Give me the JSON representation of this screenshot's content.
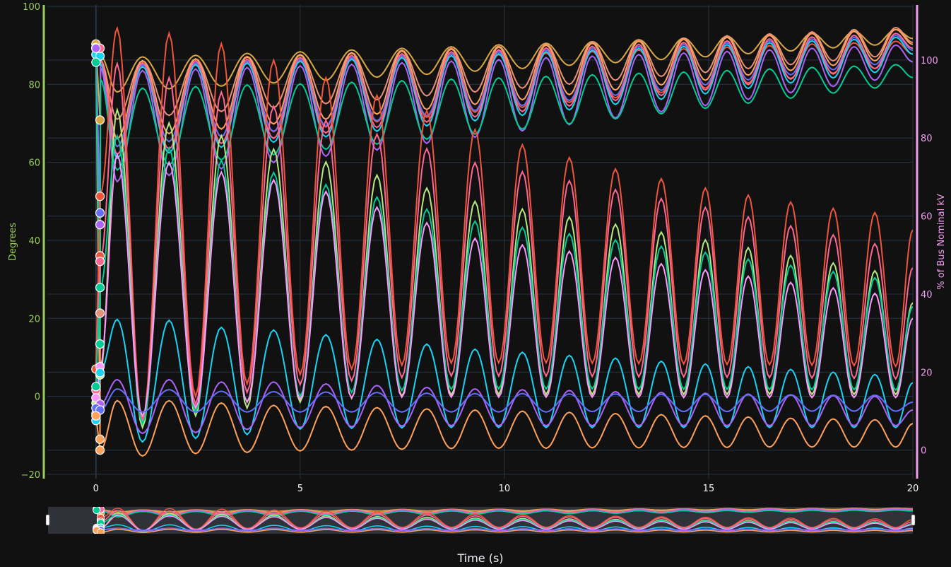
{
  "theme": {
    "background": "#111111",
    "grid": "#283442",
    "slider_bg": "#2f3238",
    "left_axis_color": "#9acd5f",
    "right_axis_color": "#f09ef0",
    "tick_text": "#f2f5fa"
  },
  "chart_data": {
    "type": "line",
    "xlabel": "Time (s)",
    "ylabel": "Degrees",
    "y2label": "% of Bus Nominal kV",
    "xlim": [
      -1.19,
      20
    ],
    "ylim": [
      -21.1,
      100.36
    ],
    "y2lim": [
      -7.3,
      114.1
    ],
    "xticks": [
      "0",
      "5",
      "10",
      "15",
      "20"
    ],
    "xtick_values": [
      0,
      5,
      10,
      15,
      20
    ],
    "yticks": [
      "100",
      "80",
      "60",
      "40",
      "20",
      "0",
      "−20"
    ],
    "ytick_values": [
      100,
      80,
      60,
      40,
      20,
      0,
      -20
    ],
    "y2ticks": [
      "100",
      "80",
      "60",
      "40",
      "20",
      "0"
    ],
    "y2tick_values": [
      100,
      80,
      60,
      40,
      20,
      0
    ],
    "grid": true,
    "rangeslider": true,
    "markers_on_first_points": 2,
    "x": [
      0,
      0.1,
      0.11,
      0.52,
      1.14,
      1.79,
      2.44,
      3.07,
      3.7,
      4.35,
      5.0,
      5.63,
      6.26,
      6.88,
      7.49,
      8.1,
      8.7,
      9.28,
      9.86,
      10.44,
      11.02,
      11.59,
      12.15,
      12.72,
      13.29,
      13.84,
      14.39,
      14.92,
      15.45,
      15.97,
      16.49,
      17.01,
      17.53,
      18.05,
      18.56,
      19.07,
      19.58,
      20
    ],
    "series": [
      {
        "color": "#d9a843",
        "yaxis": "y2",
        "y": [
          104.1,
          84.6,
          101,
          91.8,
          100.8,
          92.6,
          101.2,
          93.3,
          101.7,
          94.1,
          102.1,
          94.8,
          102.6,
          95.6,
          103.0,
          96.3,
          103.4,
          97.1,
          103.9,
          97.8,
          104.3,
          98.6,
          104.7,
          99.3,
          105.2,
          100.1,
          105.6,
          100.8,
          106.1,
          101.6,
          106.5,
          102.3,
          106.9,
          103.1,
          107.4,
          103.8,
          107.8,
          105.5
        ]
      },
      {
        "color": "#e8917a",
        "yaxis": "y2",
        "y": [
          103,
          35.1,
          100,
          84.8,
          99.8,
          85.8,
          100.3,
          86.8,
          100.9,
          87.8,
          101.4,
          88.8,
          101.9,
          89.8,
          102.5,
          90.8,
          103.0,
          91.8,
          103.5,
          92.8,
          104.0,
          93.8,
          104.6,
          94.8,
          105.1,
          95.8,
          105.6,
          96.8,
          106.2,
          97.8,
          106.7,
          98.8,
          107.2,
          99.8,
          107.8,
          100.8,
          108.3,
          104.5
        ]
      },
      {
        "color": "#ffa15a",
        "yaxis": "y2",
        "y": [
          103,
          2.8,
          100,
          79.8,
          99.8,
          81.1,
          100.3,
          82.3,
          100.8,
          83.6,
          101.3,
          84.8,
          101.8,
          86.1,
          102.3,
          87.3,
          102.8,
          88.6,
          103.3,
          89.8,
          103.8,
          91.1,
          104.3,
          92.3,
          104.8,
          93.6,
          105.3,
          94.8,
          105.8,
          96.1,
          106.3,
          97.3,
          106.8,
          98.6,
          107.3,
          99.8,
          107.8,
          104
        ]
      },
      {
        "color": "#ef553b",
        "yaxis": "y2",
        "y": [
          103,
          49.8,
          99,
          77.8,
          98.8,
          79.1,
          99.2,
          80.3,
          99.6,
          81.6,
          99.9,
          82.8,
          100.3,
          84.1,
          100.7,
          85.3,
          101.1,
          86.6,
          101.4,
          87.8,
          101.8,
          89.1,
          102.2,
          90.3,
          102.6,
          91.6,
          102.9,
          92.8,
          103.3,
          94.1,
          103.7,
          95.3,
          104.1,
          96.6,
          104.4,
          97.8,
          104.8,
          101.5
        ]
      },
      {
        "color": "#636efa",
        "yaxis": "y2",
        "y": [
          103,
          60.8,
          99,
          77.8,
          98.8,
          79.1,
          99.3,
          80.4,
          99.7,
          81.7,
          100.2,
          83.1,
          100.7,
          84.4,
          101.1,
          85.7,
          101.6,
          87.0,
          102.1,
          88.3,
          102.6,
          89.6,
          103.0,
          90.9,
          103.5,
          92.2,
          104.0,
          93.6,
          104.4,
          94.9,
          104.9,
          96.2,
          105.4,
          97.5,
          105.8,
          98.8,
          106.3,
          102.5
        ]
      },
      {
        "color": "#19d3f3",
        "yaxis": "y2",
        "y": [
          101.4,
          101,
          99,
          74.8,
          98.3,
          76.2,
          98.8,
          77.6,
          99.2,
          78.9,
          99.7,
          80.3,
          100.2,
          81.7,
          100.6,
          83.1,
          101.1,
          84.4,
          101.6,
          85.8,
          102.1,
          87.2,
          102.5,
          88.6,
          103.0,
          89.9,
          103.5,
          91.3,
          103.9,
          92.7,
          104.4,
          94.1,
          104.9,
          95.4,
          105.3,
          96.8,
          105.8,
          101.5
        ]
      },
      {
        "color": "#ff6692",
        "yaxis": "y2",
        "y": [
          103.2,
          103,
          100,
          75.8,
          99.3,
          77.2,
          99.8,
          78.6,
          100.2,
          79.9,
          100.7,
          81.3,
          101.2,
          82.7,
          101.6,
          84.1,
          102.1,
          85.4,
          102.6,
          86.8,
          103.1,
          88.2,
          103.5,
          89.6,
          104.0,
          90.9,
          104.5,
          92.3,
          104.9,
          93.7,
          105.4,
          95.1,
          105.9,
          96.4,
          106.3,
          97.8,
          106.8,
          103
        ]
      },
      {
        "color": "#ab63fa",
        "yaxis": "y2",
        "y": [
          103,
          57.8,
          98,
          68.8,
          97.3,
          70.4,
          97.7,
          72.1,
          98.1,
          73.7,
          98.5,
          75.3,
          98.9,
          76.9,
          99.3,
          78.6,
          99.7,
          80.2,
          100.1,
          81.8,
          100.6,
          83.4,
          101.0,
          85.1,
          101.4,
          86.7,
          101.8,
          88.3,
          102.2,
          89.9,
          102.6,
          91.6,
          103.0,
          93.2,
          103.4,
          94.8,
          103.8,
          99.5
        ]
      },
      {
        "color": "#00cc96",
        "yaxis": "y2",
        "y": [
          99.4,
          27.2,
          95,
          71.8,
          92.8,
          73.1,
          93.2,
          74.4,
          93.6,
          75.7,
          93.9,
          77.1,
          94.3,
          78.4,
          94.7,
          79.7,
          95.1,
          81.0,
          95.4,
          82.3,
          95.8,
          83.6,
          96.2,
          84.9,
          96.6,
          86.2,
          96.9,
          87.6,
          97.3,
          88.9,
          97.7,
          90.2,
          98.1,
          91.5,
          98.4,
          92.8,
          98.8,
          95.5
        ]
      },
      {
        "color": "#ef553b",
        "yaxis": "y",
        "y": [
          7,
          51.3,
          52,
          94.4,
          -6,
          93.1,
          0,
          90.4,
          3.2,
          86.2,
          5.6,
          81.7,
          7,
          77.2,
          8,
          73.2,
          8.5,
          68.4,
          8.6,
          64.5,
          8.6,
          61.2,
          8.5,
          58.3,
          8.4,
          55.8,
          8.3,
          53.4,
          8.2,
          51.6,
          8.1,
          49.8,
          8,
          48.2,
          7.9,
          47.1,
          7.7,
          42.7
        ]
      },
      {
        "color": "#ff6692",
        "yaxis": "y",
        "y": [
          1.6,
          34.6,
          35,
          85.3,
          -6.5,
          81.7,
          -2,
          78.0,
          1,
          74.4,
          3,
          70.8,
          4,
          67.2,
          4.8,
          63.5,
          5.2,
          59.9,
          5.2,
          57.6,
          5.2,
          55.3,
          5.1,
          53.0,
          5,
          50.7,
          5,
          48.4,
          4.9,
          46.0,
          4.8,
          43.7,
          4.7,
          41.4,
          4.6,
          39.1,
          4.5,
          33
        ]
      },
      {
        "color": "#b6e880",
        "yaxis": "y",
        "y": [
          -1.7,
          5.5,
          6,
          73.5,
          -8,
          70.1,
          -5,
          66.8,
          -3,
          63.4,
          -1.5,
          60.1,
          -0.5,
          56.7,
          0,
          53.4,
          0.3,
          50.0,
          0.5,
          48.0,
          0.5,
          46.0,
          0.5,
          44.1,
          0.5,
          42.1,
          0.5,
          40.1,
          0.5,
          38.1,
          0.5,
          36.1,
          0.5,
          34.2,
          0.5,
          32.2,
          0.5,
          24
        ]
      },
      {
        "color": "#00cc96",
        "yaxis": "y",
        "y": [
          2.5,
          27.9,
          28,
          66.8,
          -7,
          63.7,
          -4,
          60.5,
          -1.5,
          57.4,
          0,
          54.3,
          1,
          51.1,
          1.5,
          48.0,
          1.8,
          44.9,
          1.9,
          43.3,
          1.9,
          41.7,
          1.9,
          40.1,
          1.8,
          38.5,
          1.8,
          36.9,
          1.8,
          35.2,
          1.7,
          33.6,
          1.7,
          32.0,
          1.7,
          30.4,
          1.6,
          23
        ]
      },
      {
        "color": "#ff97ff",
        "yaxis": "y",
        "y": [
          -0.4,
          7.6,
          8,
          62,
          -5,
          60,
          -3,
          57.5,
          -1.5,
          55.5,
          -0.8,
          52.5,
          -0.4,
          48.5,
          -0.2,
          44.5,
          -0.2,
          40.5,
          -0.2,
          38.8,
          -0.2,
          37.2,
          -0.2,
          35.6,
          -0.2,
          34.0,
          -0.3,
          32.4,
          -0.3,
          30.8,
          -0.3,
          29.2,
          -0.3,
          27.8,
          -0.3,
          26.4,
          -0.3,
          20
        ]
      },
      {
        "color": "#19d3f3",
        "yaxis": "y",
        "y": [
          -6.2,
          6.1,
          6.5,
          19.7,
          -11.7,
          19.5,
          -10.8,
          17.7,
          -9.8,
          17.0,
          -8.4,
          15.8,
          -8.2,
          14.6,
          -8.1,
          13.4,
          -8,
          12.1,
          -8,
          11.3,
          -8,
          10.5,
          -8,
          9.8,
          -8,
          9.0,
          -8,
          8.3,
          -8,
          7.6,
          -8,
          6.9,
          -8,
          6.2,
          -8,
          5.6,
          -8,
          3.5
        ]
      },
      {
        "color": "#ab63fa",
        "yaxis": "y",
        "y": [
          -4.4,
          -2,
          -2,
          4.3,
          -9.5,
          4.3,
          -9.3,
          3.7,
          -8.5,
          3.7,
          -8,
          3.2,
          -7.8,
          2.8,
          -7.6,
          2.3,
          -7.5,
          1.9,
          -7.5,
          1.7,
          -7.5,
          1.5,
          -7.5,
          1.2,
          -7.5,
          1.0,
          -7.5,
          0.8,
          -7.5,
          0.6,
          -7.5,
          0.4,
          -7.5,
          0.2,
          -7.5,
          0,
          -7.5,
          -3.5
        ]
      },
      {
        "color": "#636efa",
        "yaxis": "y",
        "y": [
          -3,
          -3.5,
          -3.5,
          1.9,
          -4,
          1.7,
          -4,
          1.3,
          -4,
          1.2,
          -4,
          1.1,
          -4,
          1.0,
          -4,
          0.8,
          -4,
          0.7,
          -4,
          0.7,
          -4,
          0.6,
          -3.9,
          0.6,
          -3.9,
          0.5,
          -3.9,
          0.5,
          -3.9,
          0.4,
          -3.8,
          0.4,
          -3.8,
          0.3,
          -3.8,
          0.3,
          -3.8,
          -1.5
        ]
      },
      {
        "color": "#ffa15a",
        "yaxis": "y",
        "y": [
          -5,
          -13.8,
          -13.8,
          -1.1,
          -15.3,
          -1.1,
          -14.7,
          -1.7,
          -14.4,
          -2.3,
          -14,
          -2.6,
          -13.8,
          -2.9,
          -13.6,
          -3.2,
          -13.4,
          -3.5,
          -13.3,
          -3.8,
          -13.3,
          -4.1,
          -13.2,
          -4.4,
          -13.2,
          -4.7,
          -13.1,
          -5.0,
          -13.1,
          -5.3,
          -13,
          -5.6,
          -13,
          -5.8,
          -13,
          -6.0,
          -13,
          -7
        ]
      }
    ]
  }
}
